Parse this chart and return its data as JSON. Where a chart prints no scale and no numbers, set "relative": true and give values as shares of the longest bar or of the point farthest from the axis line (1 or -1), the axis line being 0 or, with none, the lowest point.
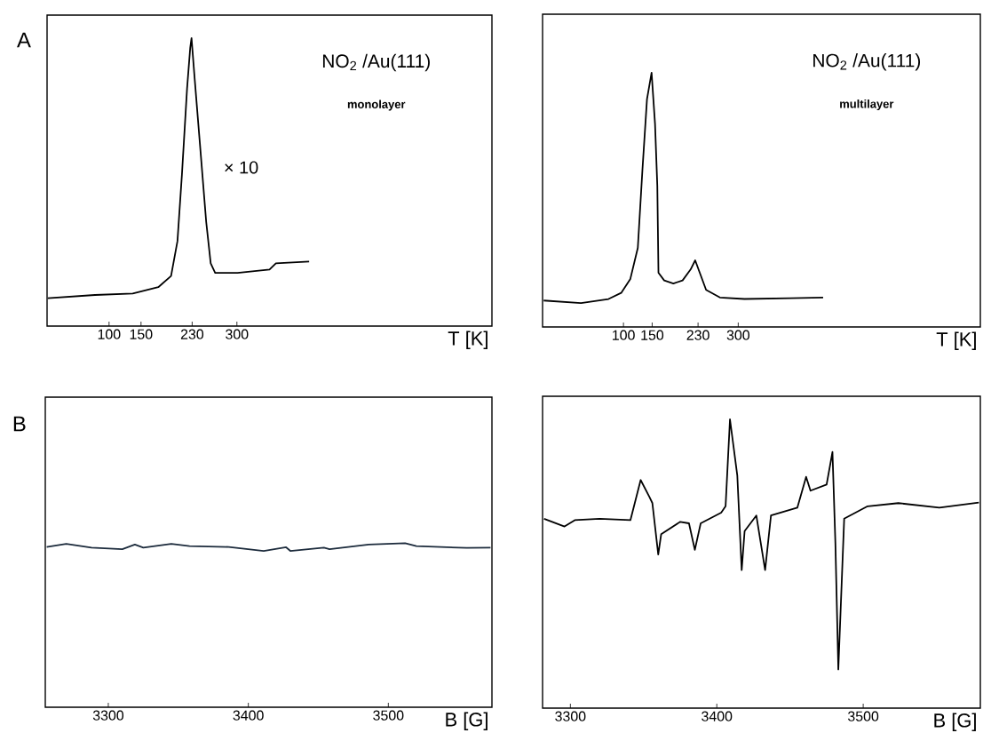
{
  "chart_data": [
    {
      "type": "line",
      "relative": true,
      "title": "NO$_{2}$ /Au(111)",
      "subtitle": "monolayer",
      "xlabel": "T [K]",
      "tick_labels": "x",
      "xlim": [
        3,
        699
      ],
      "xticks": [
        100,
        150,
        230,
        300
      ],
      "x": [
        4,
        78,
        137,
        177,
        197,
        207,
        214,
        222,
        227,
        229,
        234,
        242,
        252,
        259,
        266,
        301,
        351,
        361,
        413
      ],
      "series": [
        {
          "color": "#000000",
          "values": [
            0.097,
            0.108,
            0.113,
            0.135,
            0.174,
            0.295,
            0.526,
            0.824,
            0.967,
            1.0,
            0.857,
            0.637,
            0.361,
            0.218,
            0.185,
            0.185,
            0.196,
            0.218,
            0.224
          ]
        }
      ],
      "annotations": [
        "A",
        "× 10"
      ]
    },
    {
      "type": "line",
      "relative": true,
      "title": "NO$_{2}$ /Au(111)",
      "subtitle": "multilayer",
      "xlabel": "T [K]",
      "tick_labels": "x",
      "xlim": [
        -41,
        722
      ],
      "xticks": [
        100,
        150,
        230,
        300
      ],
      "x": [
        -39,
        26,
        74,
        96,
        112,
        125,
        133,
        141,
        149,
        155,
        159,
        161,
        171,
        187,
        203,
        217,
        225,
        233,
        244,
        268,
        311,
        391,
        448
      ],
      "series": [
        {
          "color": "#000000",
          "values": [
            0.104,
            0.094,
            0.11,
            0.134,
            0.189,
            0.311,
            0.616,
            0.896,
            1.0,
            0.799,
            0.555,
            0.213,
            0.183,
            0.171,
            0.183,
            0.226,
            0.262,
            0.213,
            0.146,
            0.116,
            0.11,
            0.113,
            0.116
          ]
        }
      ]
    },
    {
      "type": "line",
      "relative": true,
      "xlabel": "B [G]",
      "tick_labels": "x",
      "xlim": [
        3255,
        3574
      ],
      "xticks": [
        3300,
        3400,
        3500
      ],
      "x": [
        3256,
        3270,
        3288,
        3310,
        3319,
        3325,
        3345,
        3358,
        3386,
        3411,
        3427,
        3430,
        3454,
        3458,
        3486,
        3512,
        3520,
        3556,
        3573
      ],
      "series": [
        {
          "color": "#1c2b3c",
          "values": [
            0.977,
            0.996,
            0.973,
            0.963,
            0.992,
            0.973,
            0.996,
            0.982,
            0.977,
            0.953,
            0.975,
            0.953,
            0.973,
            0.963,
            0.992,
            1.0,
            0.982,
            0.971,
            0.973
          ]
        }
      ],
      "annotations": [
        "B"
      ]
    },
    {
      "type": "line",
      "relative": true,
      "xlabel": "B [G]",
      "tick_labels": "x",
      "xlim": [
        3281,
        3580
      ],
      "xticks": [
        3300,
        3400,
        3500
      ],
      "x": [
        3282,
        3296,
        3303,
        3320,
        3341,
        3348,
        3354,
        3356,
        3360,
        3362,
        3375,
        3381,
        3385,
        3389,
        3403,
        3406,
        3409,
        3414,
        3417,
        3419,
        3427,
        3433,
        3437,
        3455,
        3461,
        3464,
        3475,
        3479,
        3481,
        3483,
        3487,
        3503,
        3524,
        3552,
        3579
      ],
      "series": [
        {
          "color": "#000000",
          "values": [
            0.656,
            0.629,
            0.651,
            0.656,
            0.651,
            0.79,
            0.731,
            0.71,
            0.532,
            0.602,
            0.645,
            0.64,
            0.548,
            0.64,
            0.677,
            0.699,
            1.0,
            0.806,
            0.478,
            0.613,
            0.667,
            0.478,
            0.667,
            0.694,
            0.801,
            0.753,
            0.774,
            0.887,
            0.57,
            0.134,
            0.656,
            0.699,
            0.71,
            0.694,
            0.712
          ]
        }
      ]
    }
  ]
}
